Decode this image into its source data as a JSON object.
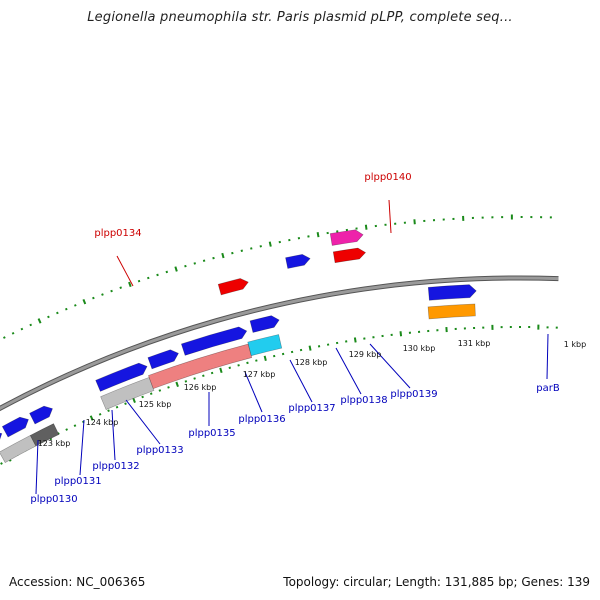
{
  "title": "Legionella pneumophila str. Paris plasmid pLPP, complete seq...",
  "footer": {
    "accession": "Accession: NC_006365",
    "summary": "Topology: circular; Length: 131,885 bp; Genes: 139"
  },
  "colors": {
    "backbone": "#808080",
    "tick": "#1a8a1a",
    "gene_label_top": "#cc0000",
    "gene_label_bottom": "#0000bb",
    "gene_blue": "#1515e0",
    "gene_red": "#ee0000",
    "gene_magenta": "#ee22aa",
    "gene_gray": "#c0c0c0",
    "gene_darkgray": "#606060",
    "gene_salmon": "#ee8080",
    "gene_cyan": "#22ccee",
    "gene_orange": "#ff9900"
  },
  "kbp_ticks": [
    "123 kbp",
    "124 kbp",
    "125 kbp",
    "126 kbp",
    "127 kbp",
    "128 kbp",
    "129 kbp",
    "130 kbp",
    "131 kbp",
    "1 kbp"
  ],
  "gene_labels": [
    {
      "text": "plpp0134",
      "strand": "top"
    },
    {
      "text": "plpp0140",
      "strand": "top"
    },
    {
      "text": "plpp0130",
      "strand": "bottom"
    },
    {
      "text": "plpp0131",
      "strand": "bottom"
    },
    {
      "text": "plpp0132",
      "strand": "bottom"
    },
    {
      "text": "plpp0133",
      "strand": "bottom"
    },
    {
      "text": "plpp0135",
      "strand": "bottom"
    },
    {
      "text": "plpp0136",
      "strand": "bottom"
    },
    {
      "text": "plpp0137",
      "strand": "bottom"
    },
    {
      "text": "plpp0138",
      "strand": "bottom"
    },
    {
      "text": "plpp0139",
      "strand": "bottom"
    },
    {
      "text": "parB",
      "strand": "bottom"
    }
  ]
}
